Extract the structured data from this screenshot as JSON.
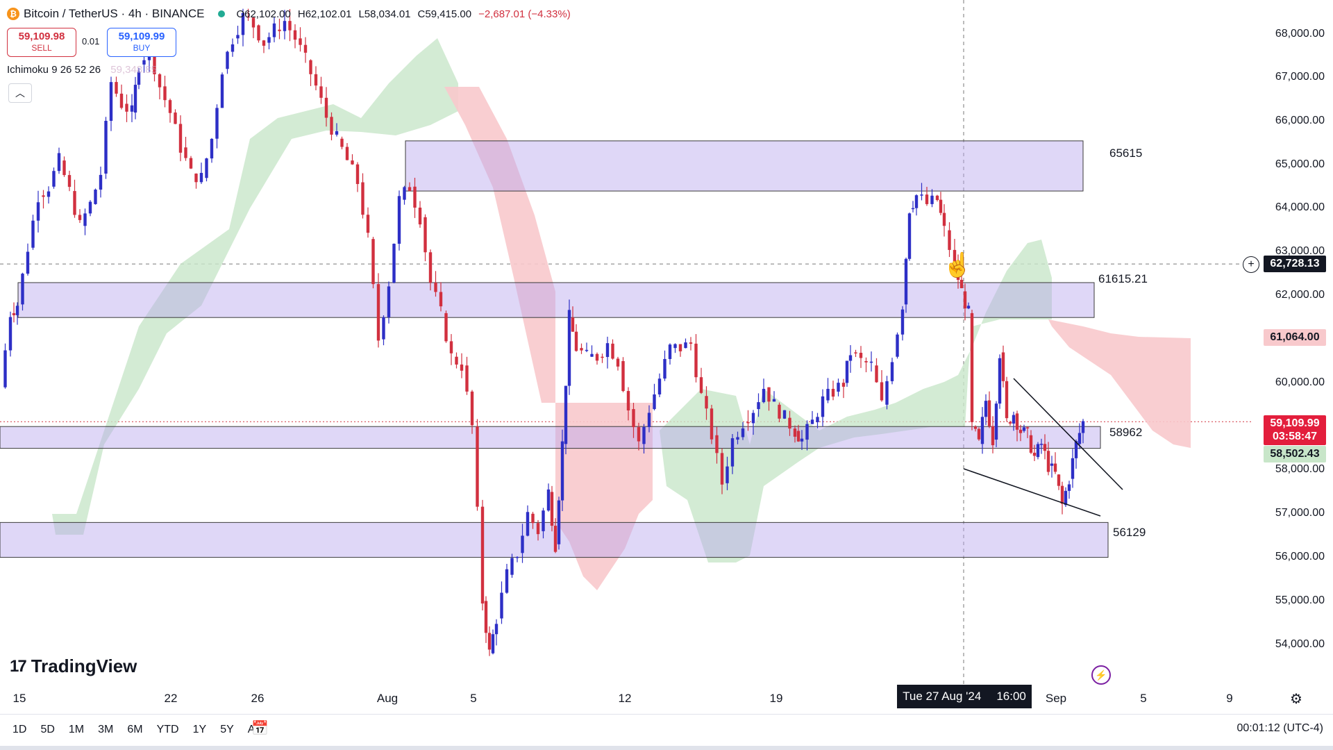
{
  "header": {
    "title": "Bitcoin / TetherUS · 4h · BINANCE",
    "open": "O62,102.00",
    "high": "H62,102.01",
    "low": "L58,034.01",
    "close": "C59,415.00",
    "change": "−2,687.01 (−4.33%)"
  },
  "trade": {
    "sell_price": "59,109.98",
    "sell_label": "SELL",
    "spread": "0.01",
    "buy_price": "59,109.99",
    "buy_label": "BUY"
  },
  "indicator": {
    "name": "Ichimoku 9 26 52 26",
    "faded_value": "59,348.85"
  },
  "price_axis": [
    "68,000.00",
    "67,000.00",
    "66,000.00",
    "65,000.00",
    "64,000.00",
    "63,000.00",
    "62,000.00",
    "60,000.00",
    "58,000.00",
    "57,000.00",
    "56,000.00",
    "55,000.00",
    "54,000.00"
  ],
  "tags": {
    "crosshair_price": "62,728.13",
    "cloud_price": "61,064.00",
    "last_price": "59,109.99",
    "countdown": "03:58:47",
    "green_price": "58,502.43"
  },
  "zones": {
    "z1": "65615",
    "z2": "61615.21",
    "z3": "58962",
    "z4": "56129"
  },
  "time_axis": [
    "15",
    "22",
    "26",
    "Aug",
    "5",
    "12",
    "19",
    "Sep",
    "5",
    "9"
  ],
  "crosshair_date": {
    "date": "Tue 27 Aug '24",
    "time": "16:00"
  },
  "ranges": [
    "1D",
    "5D",
    "1M",
    "3M",
    "6M",
    "YTD",
    "1Y",
    "5Y",
    "All"
  ],
  "timezone": "00:01:12 (UTC-4)",
  "logo": "TradingView",
  "colors": {
    "up": "#2d2fc6",
    "down": "#d1303f",
    "zone": "#d8cdf4",
    "cloud_green": "#c8e6c9",
    "cloud_red": "#f8c9cc"
  },
  "chart_data": {
    "type": "candlestick",
    "symbol": "Bitcoin / TetherUS",
    "interval": "4h",
    "exchange": "BINANCE",
    "ylim": [
      53500,
      68500
    ],
    "horizontal_zones": [
      {
        "label": "65615",
        "from": 64400,
        "to": 65550
      },
      {
        "label": "61615.21",
        "from": 61500,
        "to": 62300
      },
      {
        "label": "58962",
        "from": 58500,
        "to": 59000
      },
      {
        "label": "56129",
        "from": 56000,
        "to": 56800
      }
    ],
    "last_price": 59109.99,
    "crosshair_price": 62728.13,
    "path": [
      [
        0,
        59900
      ],
      [
        15,
        61600
      ],
      [
        25,
        61800
      ],
      [
        40,
        63100
      ],
      [
        55,
        64300
      ],
      [
        70,
        64500
      ],
      [
        85,
        65100
      ],
      [
        100,
        64400
      ],
      [
        115,
        63600
      ],
      [
        130,
        64100
      ],
      [
        145,
        64800
      ],
      [
        160,
        66900
      ],
      [
        175,
        66400
      ],
      [
        190,
        66200
      ],
      [
        200,
        67300
      ],
      [
        215,
        67700
      ],
      [
        230,
        66800
      ],
      [
        245,
        66200
      ],
      [
        260,
        65400
      ],
      [
        275,
        64800
      ],
      [
        290,
        64700
      ],
      [
        305,
        65600
      ],
      [
        320,
        67200
      ],
      [
        335,
        67900
      ],
      [
        350,
        68400
      ],
      [
        365,
        68200
      ],
      [
        380,
        67800
      ],
      [
        395,
        68100
      ],
      [
        410,
        68300
      ],
      [
        425,
        67900
      ],
      [
        440,
        67400
      ],
      [
        455,
        66800
      ],
      [
        470,
        66100
      ],
      [
        485,
        65600
      ],
      [
        500,
        65100
      ],
      [
        515,
        64600
      ],
      [
        530,
        63300
      ],
      [
        545,
        61000
      ],
      [
        560,
        62300
      ],
      [
        575,
        64200
      ],
      [
        590,
        64500
      ],
      [
        605,
        63800
      ],
      [
        620,
        62300
      ],
      [
        635,
        61600
      ],
      [
        650,
        60600
      ],
      [
        665,
        60400
      ],
      [
        680,
        59000
      ],
      [
        695,
        55000
      ],
      [
        705,
        53800
      ],
      [
        715,
        54600
      ],
      [
        730,
        55600
      ],
      [
        745,
        56100
      ],
      [
        760,
        57000
      ],
      [
        775,
        56600
      ],
      [
        790,
        57500
      ],
      [
        800,
        56300
      ],
      [
        810,
        58600
      ],
      [
        820,
        61500
      ],
      [
        830,
        60800
      ],
      [
        845,
        60600
      ],
      [
        860,
        60600
      ],
      [
        875,
        60900
      ],
      [
        890,
        60500
      ],
      [
        905,
        59400
      ],
      [
        920,
        58600
      ],
      [
        935,
        59400
      ],
      [
        950,
        60100
      ],
      [
        965,
        60800
      ],
      [
        980,
        60800
      ],
      [
        995,
        60900
      ],
      [
        1010,
        59700
      ],
      [
        1025,
        58800
      ],
      [
        1040,
        57700
      ],
      [
        1055,
        58700
      ],
      [
        1070,
        59100
      ],
      [
        1085,
        59400
      ],
      [
        1100,
        59900
      ],
      [
        1115,
        59500
      ],
      [
        1130,
        59200
      ],
      [
        1145,
        58900
      ],
      [
        1155,
        58700
      ],
      [
        1170,
        59100
      ],
      [
        1185,
        59600
      ],
      [
        1200,
        59800
      ],
      [
        1215,
        60000
      ],
      [
        1225,
        60700
      ],
      [
        1240,
        60500
      ],
      [
        1255,
        60400
      ],
      [
        1270,
        59500
      ],
      [
        1285,
        60600
      ],
      [
        1300,
        61800
      ],
      [
        1310,
        64000
      ],
      [
        1320,
        64300
      ],
      [
        1335,
        64100
      ],
      [
        1350,
        64200
      ],
      [
        1360,
        63500
      ],
      [
        1375,
        62700
      ],
      [
        1385,
        62100
      ],
      [
        1395,
        61600
      ],
      [
        1400,
        59000
      ],
      [
        1410,
        58600
      ],
      [
        1420,
        59600
      ],
      [
        1430,
        58700
      ],
      [
        1440,
        60700
      ],
      [
        1450,
        59100
      ],
      [
        1460,
        59300
      ],
      [
        1470,
        58900
      ],
      [
        1480,
        58800
      ],
      [
        1490,
        58300
      ],
      [
        1500,
        58600
      ],
      [
        1510,
        58100
      ],
      [
        1520,
        57900
      ],
      [
        1530,
        57200
      ],
      [
        1540,
        57800
      ],
      [
        1550,
        58600
      ],
      [
        1560,
        59100
      ]
    ]
  }
}
